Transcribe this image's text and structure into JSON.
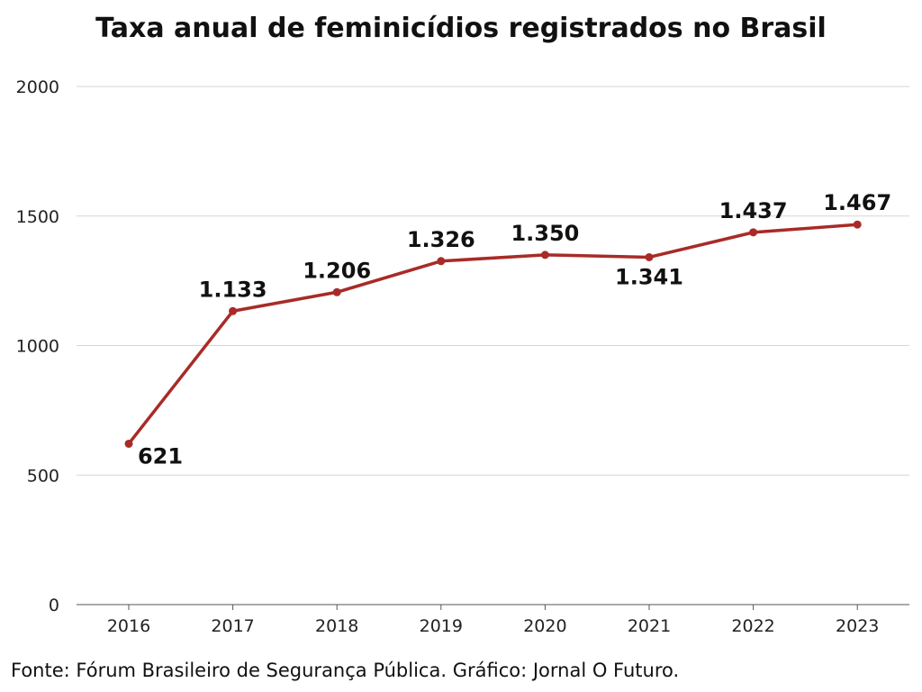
{
  "chart_data": {
    "type": "line",
    "title": "Taxa anual de feminicídios registrados no Brasil",
    "xlabel": "",
    "ylabel": "",
    "x": [
      "2016",
      "2017",
      "2018",
      "2019",
      "2020",
      "2021",
      "2022",
      "2023"
    ],
    "series": [
      {
        "name": "Feminicídios",
        "values": [
          621,
          1133,
          1206,
          1326,
          1350,
          1341,
          1437,
          1467
        ],
        "labels": [
          "621",
          "1.133",
          "1.206",
          "1.326",
          "1.350",
          "1.341",
          "1.437",
          "1.467"
        ]
      }
    ],
    "ylim": [
      0,
      2000
    ],
    "yticks": [
      0,
      500,
      1000,
      1500,
      2000
    ],
    "ytick_labels": [
      "0",
      "500",
      "1000",
      "1500",
      "2000"
    ],
    "grid": true,
    "line_color": "#a82b27",
    "source": "Fonte: Fórum Brasileiro de Segurança Pública. Gráfico: Jornal O Futuro."
  }
}
